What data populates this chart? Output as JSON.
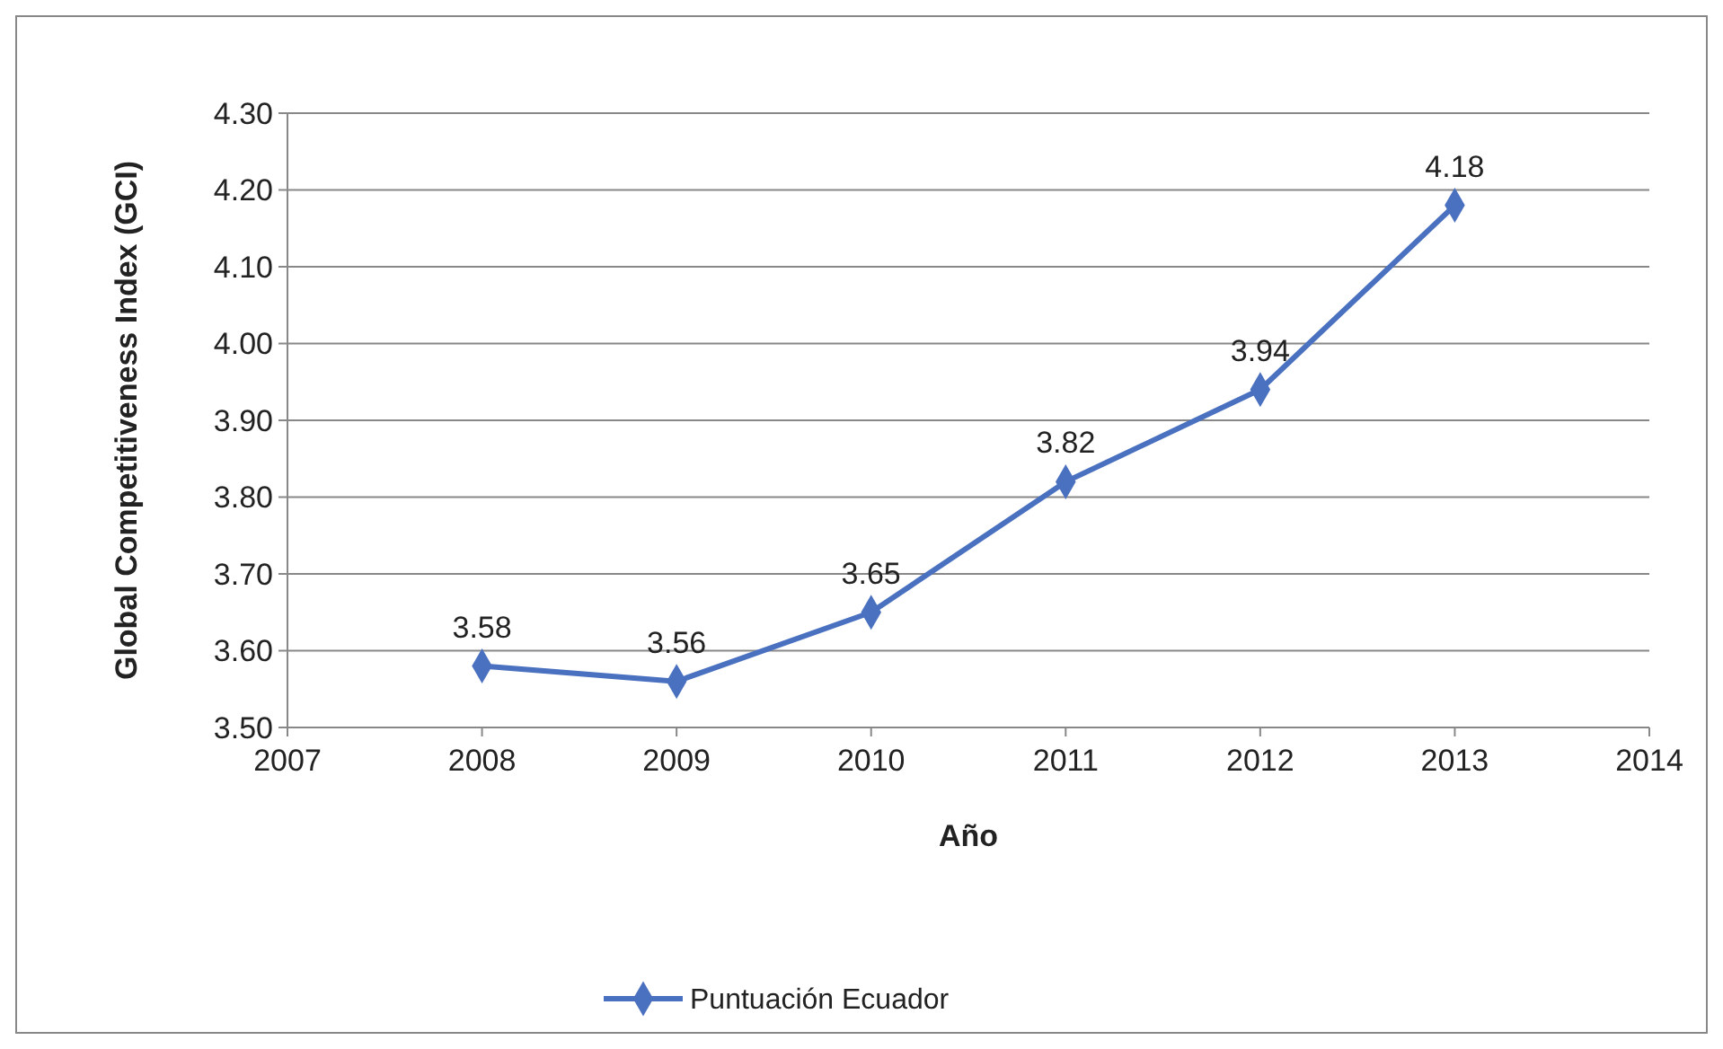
{
  "chart_data": {
    "type": "line",
    "xlabel": "Año",
    "ylabel": "Global Competitiveness Index (GCI)",
    "x": [
      2008,
      2009,
      2010,
      2011,
      2012,
      2013
    ],
    "series": [
      {
        "name": "Puntuación Ecuador",
        "color": "#4a70c0",
        "values": [
          3.58,
          3.56,
          3.65,
          3.82,
          3.94,
          4.18
        ]
      }
    ],
    "xlim": [
      2007,
      2014
    ],
    "xticks": [
      2007,
      2008,
      2009,
      2010,
      2011,
      2012,
      2013,
      2014
    ],
    "ylim": [
      3.5,
      4.3
    ],
    "yticks": [
      {
        "value": 3.5,
        "label": "3.50"
      },
      {
        "value": 3.6,
        "label": "3.60"
      },
      {
        "value": 3.7,
        "label": "3.70"
      },
      {
        "value": 3.8,
        "label": "3.80"
      },
      {
        "value": 3.9,
        "label": "3.90"
      },
      {
        "value": 4.0,
        "label": "4.00"
      },
      {
        "value": 4.1,
        "label": "4.10"
      },
      {
        "value": 4.2,
        "label": "4.20"
      },
      {
        "value": 4.3,
        "label": "4.30"
      }
    ],
    "grid": "y",
    "legend": "bottom",
    "marker": "diamond",
    "line_style": "solid",
    "data_labels": true
  }
}
